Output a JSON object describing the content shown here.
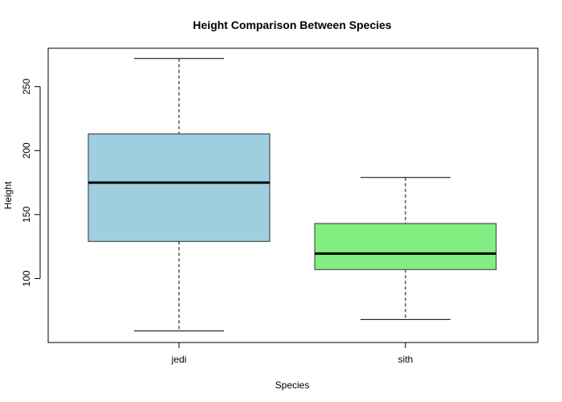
{
  "chart_data": {
    "type": "boxplot",
    "title": "Height Comparison Between Species",
    "xlabel": "Species",
    "ylabel": "Height",
    "categories": [
      "jedi",
      "sith"
    ],
    "boxes": [
      {
        "category": "jedi",
        "min": 59,
        "q1": 129,
        "median": 175,
        "q3": 213,
        "max": 272,
        "color": "#9ecfe0"
      },
      {
        "category": "sith",
        "min": 68,
        "q1": 107,
        "median": 119.5,
        "q3": 143,
        "max": 179,
        "color": "#82ee82"
      }
    ],
    "yticks": [
      100,
      150,
      200,
      250
    ],
    "ylim": [
      50,
      280
    ],
    "grid": false,
    "legend": "none"
  }
}
